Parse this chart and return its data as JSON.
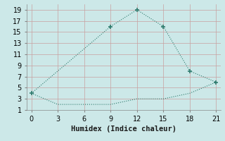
{
  "line1_x": [
    0,
    3,
    6,
    9,
    12,
    15,
    18,
    21
  ],
  "line1_y": [
    4,
    8,
    12,
    16,
    19,
    16,
    8,
    6
  ],
  "line2_x": [
    0,
    3,
    6,
    9,
    12,
    15,
    18,
    21
  ],
  "line2_y": [
    4,
    2,
    2,
    2,
    3,
    3,
    4,
    6
  ],
  "marker1_x": [
    0,
    9,
    12,
    15,
    18,
    21
  ],
  "marker1_y": [
    4,
    16,
    19,
    16,
    8,
    6
  ],
  "line_color": "#2e7b6e",
  "bg_color": "#cce8e8",
  "grid_color": "#b0d0d0",
  "xlabel": "Humidex (Indice chaleur)",
  "xlim": [
    -0.5,
    21.5
  ],
  "ylim": [
    1,
    20
  ],
  "xticks": [
    0,
    3,
    6,
    9,
    12,
    15,
    18,
    21
  ],
  "yticks": [
    1,
    3,
    5,
    7,
    9,
    11,
    13,
    15,
    17,
    19
  ],
  "xlabel_fontsize": 7.5,
  "tick_fontsize": 7
}
